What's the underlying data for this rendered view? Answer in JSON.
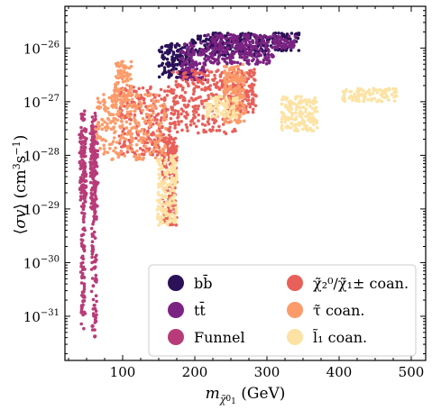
{
  "chart_data": {
    "type": "scatter",
    "xlabel": "m_χ̃₁⁰ (GeV)",
    "ylabel": "⟨σv⟩ (cm³s⁻¹)",
    "xlim": [
      20,
      520
    ],
    "ylim": [
      1.5e-32,
      6e-26
    ],
    "yscale": "log",
    "grid": false,
    "legend_position": "bottom-right",
    "x_ticks": [
      {
        "value": 100,
        "label": "100"
      },
      {
        "value": 200,
        "label": "200"
      },
      {
        "value": 300,
        "label": "300"
      },
      {
        "value": 400,
        "label": "400"
      },
      {
        "value": 500,
        "label": "500"
      }
    ],
    "y_ticks": [
      {
        "exp": -31,
        "label": "10",
        "sup": "−31"
      },
      {
        "exp": -30,
        "label": "10",
        "sup": "−30"
      },
      {
        "exp": -29,
        "label": "10",
        "sup": "−29"
      },
      {
        "exp": -28,
        "label": "10",
        "sup": "−28"
      },
      {
        "exp": -27,
        "label": "10",
        "sup": "−27"
      },
      {
        "exp": -26,
        "label": "10",
        "sup": "−26"
      }
    ],
    "series": [
      {
        "name": "bb̄",
        "color": "#2b1157",
        "regions": [
          [
            150,
            195,
            -26.55,
            -25.9
          ],
          [
            195,
            300,
            -26.15,
            -25.72
          ],
          [
            300,
            345,
            -26.05,
            -25.72
          ]
        ]
      },
      {
        "name": "tt̄",
        "color": "#7b2382",
        "regions": [
          [
            180,
            215,
            -26.6,
            -25.9
          ],
          [
            215,
            310,
            -26.3,
            -25.75
          ],
          [
            310,
            340,
            -26.0,
            -25.78
          ]
        ]
      },
      {
        "name": "Funnel",
        "color": "#b83b79",
        "regions": [
          [
            42,
            48,
            -31.3,
            -27.1
          ],
          [
            57,
            64,
            -31.4,
            -27.2
          ],
          [
            40,
            50,
            -29.0,
            -27.5
          ],
          [
            55,
            66,
            -29.0,
            -27.5
          ]
        ]
      },
      {
        "name": "χ̃₂⁰/χ̃₁± coan.",
        "color": "#e8605a",
        "regions": [
          [
            95,
            175,
            -28.0,
            -26.7
          ],
          [
            155,
            175,
            -29.3,
            -27.6
          ],
          [
            170,
            260,
            -27.6,
            -26.4
          ],
          [
            250,
            285,
            -27.2,
            -26.4
          ]
        ]
      },
      {
        "name": "τ̃ coan.",
        "color": "#fc9b6a",
        "regions": [
          [
            60,
            160,
            -28.1,
            -26.85
          ],
          [
            88,
            112,
            -27.1,
            -26.25
          ],
          [
            240,
            270,
            -27.4,
            -26.3
          ]
        ]
      },
      {
        "name": "l̃₁ coan.",
        "color": "#fde2a3",
        "regions": [
          [
            148,
            175,
            -29.3,
            -28.0
          ],
          [
            215,
            260,
            -27.3,
            -26.9
          ],
          [
            320,
            370,
            -27.55,
            -26.9
          ],
          [
            405,
            480,
            -27.0,
            -26.75
          ]
        ]
      }
    ]
  }
}
